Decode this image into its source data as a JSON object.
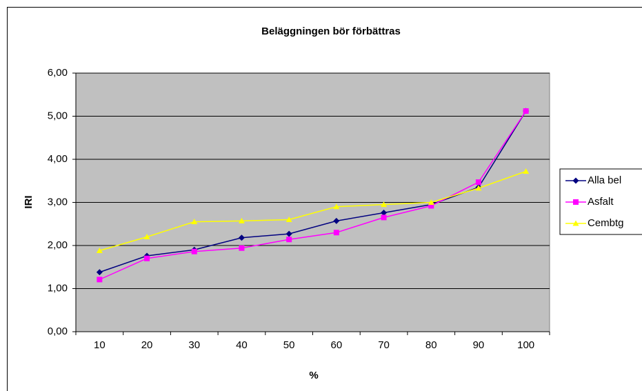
{
  "chart_data": {
    "type": "line",
    "title": "Beläggningen bör förbättras",
    "x_label": "%",
    "y_label": "IRI",
    "categories": [
      "10",
      "20",
      "30",
      "40",
      "50",
      "60",
      "70",
      "80",
      "90",
      "100"
    ],
    "series": [
      {
        "name": "Alla bel",
        "color": "#000080",
        "marker": "diamond",
        "values": [
          1.38,
          1.76,
          1.9,
          2.18,
          2.27,
          2.57,
          2.76,
          2.95,
          3.35,
          5.12
        ]
      },
      {
        "name": "Asfalt",
        "color": "#ff00ff",
        "marker": "square",
        "values": [
          1.21,
          1.7,
          1.86,
          1.94,
          2.14,
          2.3,
          2.65,
          2.92,
          3.47,
          5.12
        ]
      },
      {
        "name": "Cembtg",
        "color": "#ffff00",
        "marker": "triangle",
        "values": [
          1.88,
          2.2,
          2.55,
          2.57,
          2.6,
          2.9,
          2.95,
          3.0,
          3.33,
          3.72
        ]
      }
    ],
    "ylim": [
      0,
      6
    ],
    "yticks": [
      {
        "value": 0,
        "label": "0,00"
      },
      {
        "value": 1,
        "label": "1,00"
      },
      {
        "value": 2,
        "label": "2,00"
      },
      {
        "value": 3,
        "label": "3,00"
      },
      {
        "value": 4,
        "label": "4,00"
      },
      {
        "value": 5,
        "label": "5,00"
      },
      {
        "value": 6,
        "label": "6,00"
      }
    ],
    "grid": true,
    "plot_background": "#c0c0c0",
    "legend": "right"
  }
}
